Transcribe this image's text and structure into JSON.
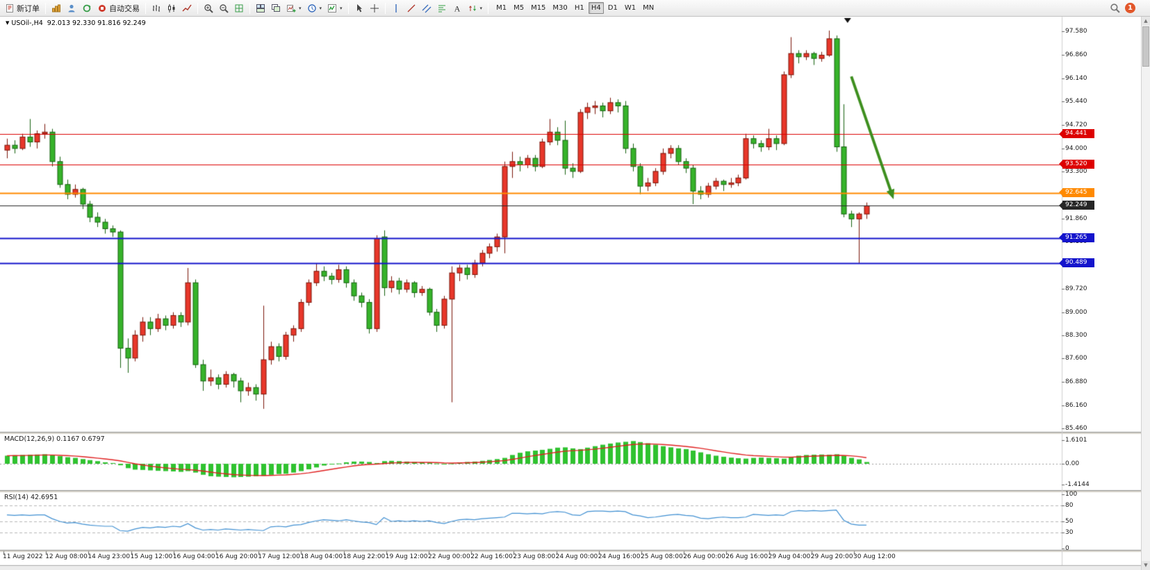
{
  "toolbar": {
    "items": [
      {
        "type": "button",
        "name": "new-order",
        "icon": "new-order-icon",
        "label": "新订单"
      },
      {
        "type": "sep"
      },
      {
        "type": "button",
        "name": "charts",
        "icon": "charts-icon"
      },
      {
        "type": "button",
        "name": "profiles",
        "icon": "profile-icon"
      },
      {
        "type": "button",
        "name": "refresh",
        "icon": "refresh-icon"
      },
      {
        "type": "button",
        "name": "autotrading",
        "icon": "autotrade-icon",
        "label": "自动交易"
      },
      {
        "type": "sep"
      },
      {
        "type": "button",
        "name": "bar-chart-mode",
        "icon": "bars-chart-icon"
      },
      {
        "type": "button",
        "name": "candlestick-mode",
        "icon": "candles-chart-icon"
      },
      {
        "type": "button",
        "name": "line-chart-mode",
        "icon": "line-chart-icon"
      },
      {
        "type": "sep"
      },
      {
        "type": "button",
        "name": "zoom-in",
        "icon": "zoom-in-icon"
      },
      {
        "type": "button",
        "name": "zoom-out",
        "icon": "zoom-out-icon"
      },
      {
        "type": "button",
        "name": "auto-arrange",
        "icon": "grid-icon"
      },
      {
        "type": "sep"
      },
      {
        "type": "button",
        "name": "tile-windows",
        "icon": "tile-windows-icon"
      },
      {
        "type": "button",
        "name": "cascade-windows",
        "icon": "cascade-windows-icon"
      },
      {
        "type": "button",
        "name": "new-chart",
        "icon": "new-chart-icon",
        "caret": true
      },
      {
        "type": "button",
        "name": "periods",
        "icon": "clock-icon",
        "caret": true
      },
      {
        "type": "button",
        "name": "indicators",
        "icon": "indicators-icon",
        "caret": true
      },
      {
        "type": "sep"
      },
      {
        "type": "button",
        "name": "cursor",
        "icon": "cursor-icon"
      },
      {
        "type": "button",
        "name": "crosshair",
        "icon": "crosshair-icon"
      },
      {
        "type": "sep"
      },
      {
        "type": "button",
        "name": "vertical-line",
        "icon": "vline-icon"
      },
      {
        "type": "button",
        "name": "trendline",
        "icon": "trendline-icon"
      },
      {
        "type": "button",
        "name": "equidistant-channel",
        "icon": "channel-icon"
      },
      {
        "type": "button",
        "name": "fibonacci",
        "icon": "fibonacci-icon"
      },
      {
        "type": "button",
        "name": "text-label",
        "icon": "text-icon"
      },
      {
        "type": "button",
        "name": "arrow-objects",
        "icon": "arrows-icon",
        "caret": true
      },
      {
        "type": "sep"
      }
    ],
    "timeframes": {
      "items": [
        "M1",
        "M5",
        "M15",
        "M30",
        "H1",
        "H4",
        "D1",
        "W1",
        "MN"
      ],
      "active": "H4"
    },
    "badge_count": "1"
  },
  "chart": {
    "symbol_period": "USOil-,H4",
    "ohlc_text": "92.013 92.330 91.816 92.249"
  },
  "chart_data": {
    "type": "candlestick",
    "symbol": "USOil-",
    "timeframe": "H4",
    "price_range": [
      85.46,
      97.58
    ],
    "price_axis_labels": [
      "97.580",
      "96.860",
      "96.140",
      "95.440",
      "94.720",
      "94.000",
      "93.300",
      "92.580",
      "91.860",
      "91.160",
      "90.440",
      "89.720",
      "89.000",
      "88.300",
      "87.600",
      "86.880",
      "86.160",
      "85.460"
    ],
    "time_axis_labels": [
      "11 Aug 2022",
      "12 Aug 08:00",
      "14 Aug 23:00",
      "15 Aug 12:00",
      "16 Aug 04:00",
      "16 Aug 20:00",
      "17 Aug 12:00",
      "18 Aug 04:00",
      "18 Aug 22:00",
      "19 Aug 12:00",
      "22 Aug 00:00",
      "22 Aug 16:00",
      "23 Aug 08:00",
      "24 Aug 00:00",
      "24 Aug 16:00",
      "25 Aug 08:00",
      "26 Aug 00:00",
      "26 Aug 16:00",
      "29 Aug 04:00",
      "29 Aug 20:00",
      "30 Aug 12:00"
    ],
    "levels": [
      {
        "label": "94.441",
        "price": 94.441,
        "color": "#dd0000",
        "width": 1
      },
      {
        "label": "93.520",
        "price": 93.52,
        "color": "#dd0000",
        "width": 1
      },
      {
        "label": "92.645",
        "price": 92.645,
        "color": "#ff8a00",
        "width": 2
      },
      {
        "label": "92.249",
        "price": 92.249,
        "color": "#262626",
        "width": 1
      },
      {
        "label": "91.265",
        "price": 91.265,
        "color": "#1414cc",
        "width": 2
      },
      {
        "label": "90.489",
        "price": 90.489,
        "color": "#1414cc",
        "width": 2
      }
    ],
    "candles": [
      [
        93.95,
        94.3,
        93.7,
        94.1
      ],
      [
        94.1,
        94.25,
        93.85,
        94.0
      ],
      [
        94.0,
        94.45,
        93.95,
        94.35
      ],
      [
        94.35,
        94.9,
        94.05,
        94.2
      ],
      [
        94.2,
        94.55,
        94.0,
        94.45
      ],
      [
        94.45,
        94.75,
        94.3,
        94.5
      ],
      [
        94.5,
        94.6,
        93.45,
        93.6
      ],
      [
        93.6,
        93.75,
        92.8,
        92.9
      ],
      [
        92.9,
        93.05,
        92.45,
        92.6
      ],
      [
        92.6,
        92.9,
        92.5,
        92.75
      ],
      [
        92.75,
        92.8,
        92.15,
        92.3
      ],
      [
        92.3,
        92.4,
        91.75,
        91.9
      ],
      [
        91.9,
        92.05,
        91.6,
        91.75
      ],
      [
        91.75,
        91.85,
        91.4,
        91.55
      ],
      [
        91.55,
        91.65,
        91.3,
        91.45
      ],
      [
        91.45,
        91.5,
        87.3,
        87.9
      ],
      [
        87.9,
        88.2,
        87.15,
        87.6
      ],
      [
        87.6,
        88.45,
        87.5,
        88.3
      ],
      [
        88.3,
        88.85,
        88.1,
        88.7
      ],
      [
        88.7,
        88.85,
        88.3,
        88.5
      ],
      [
        88.5,
        88.95,
        88.4,
        88.8
      ],
      [
        88.8,
        88.9,
        88.45,
        88.6
      ],
      [
        88.6,
        89.0,
        88.5,
        88.9
      ],
      [
        88.9,
        89.0,
        88.55,
        88.7
      ],
      [
        88.7,
        90.35,
        88.6,
        89.9
      ],
      [
        89.9,
        90.0,
        87.3,
        87.4
      ],
      [
        87.4,
        87.55,
        86.6,
        86.9
      ],
      [
        86.9,
        87.25,
        86.75,
        87.0
      ],
      [
        87.0,
        87.1,
        86.65,
        86.8
      ],
      [
        86.8,
        87.2,
        86.7,
        87.1
      ],
      [
        87.1,
        87.15,
        86.7,
        86.9
      ],
      [
        86.9,
        87.0,
        86.25,
        86.6
      ],
      [
        86.6,
        86.85,
        86.45,
        86.7
      ],
      [
        86.7,
        86.8,
        86.3,
        86.5
      ],
      [
        86.5,
        89.2,
        86.05,
        87.55
      ],
      [
        87.55,
        88.1,
        87.4,
        87.95
      ],
      [
        87.95,
        88.05,
        87.5,
        87.65
      ],
      [
        87.65,
        88.4,
        87.55,
        88.3
      ],
      [
        88.3,
        88.6,
        88.1,
        88.5
      ],
      [
        88.5,
        89.4,
        88.4,
        89.3
      ],
      [
        89.3,
        90.0,
        89.2,
        89.9
      ],
      [
        89.9,
        90.5,
        89.8,
        90.25
      ],
      [
        90.25,
        90.4,
        89.95,
        90.1
      ],
      [
        90.1,
        90.2,
        89.85,
        90.0
      ],
      [
        90.0,
        90.45,
        89.9,
        90.3
      ],
      [
        90.3,
        90.4,
        89.75,
        89.9
      ],
      [
        89.9,
        90.0,
        89.35,
        89.5
      ],
      [
        89.5,
        89.6,
        89.15,
        89.3
      ],
      [
        89.3,
        89.4,
        88.35,
        88.5
      ],
      [
        88.5,
        91.35,
        88.4,
        91.25
      ],
      [
        91.3,
        91.5,
        89.5,
        89.75
      ],
      [
        89.75,
        90.1,
        89.6,
        89.95
      ],
      [
        89.95,
        90.05,
        89.55,
        89.7
      ],
      [
        89.7,
        90.0,
        89.6,
        89.9
      ],
      [
        89.9,
        89.95,
        89.45,
        89.6
      ],
      [
        89.6,
        89.8,
        89.5,
        89.7
      ],
      [
        89.7,
        89.75,
        88.9,
        89.0
      ],
      [
        89.0,
        89.1,
        88.4,
        88.6
      ],
      [
        88.6,
        89.5,
        88.5,
        89.4
      ],
      [
        89.4,
        90.4,
        86.25,
        90.2
      ],
      [
        90.2,
        90.45,
        89.95,
        90.35
      ],
      [
        90.35,
        90.45,
        90.0,
        90.15
      ],
      [
        90.15,
        90.6,
        90.05,
        90.5
      ],
      [
        90.5,
        90.9,
        90.4,
        90.8
      ],
      [
        90.8,
        91.1,
        90.65,
        91.0
      ],
      [
        91.0,
        91.4,
        90.85,
        91.3
      ],
      [
        91.3,
        93.6,
        90.8,
        93.45
      ],
      [
        93.45,
        93.9,
        93.1,
        93.6
      ],
      [
        93.6,
        93.75,
        93.3,
        93.5
      ],
      [
        93.5,
        93.8,
        93.4,
        93.7
      ],
      [
        93.7,
        93.8,
        93.3,
        93.45
      ],
      [
        93.45,
        94.3,
        93.4,
        94.2
      ],
      [
        94.2,
        94.9,
        94.1,
        94.5
      ],
      [
        94.5,
        94.65,
        94.1,
        94.25
      ],
      [
        94.25,
        94.85,
        93.2,
        93.4
      ],
      [
        93.4,
        93.55,
        93.1,
        93.3
      ],
      [
        93.3,
        95.2,
        93.25,
        95.1
      ],
      [
        95.1,
        95.4,
        94.9,
        95.25
      ],
      [
        95.25,
        95.45,
        95.05,
        95.3
      ],
      [
        95.3,
        95.4,
        94.95,
        95.15
      ],
      [
        95.15,
        95.55,
        95.05,
        95.4
      ],
      [
        95.4,
        95.5,
        95.1,
        95.3
      ],
      [
        95.3,
        95.45,
        93.85,
        94.0
      ],
      [
        94.0,
        94.15,
        93.3,
        93.45
      ],
      [
        93.45,
        93.55,
        92.6,
        92.85
      ],
      [
        92.85,
        93.1,
        92.7,
        92.95
      ],
      [
        92.95,
        93.4,
        92.85,
        93.3
      ],
      [
        93.3,
        94.0,
        93.2,
        93.85
      ],
      [
        93.85,
        94.1,
        93.7,
        94.0
      ],
      [
        94.0,
        94.1,
        93.5,
        93.6
      ],
      [
        93.6,
        93.7,
        93.25,
        93.4
      ],
      [
        93.4,
        93.5,
        92.3,
        92.7
      ],
      [
        92.7,
        92.85,
        92.45,
        92.6
      ],
      [
        92.6,
        92.95,
        92.5,
        92.85
      ],
      [
        92.85,
        93.1,
        92.75,
        93.0
      ],
      [
        93.0,
        93.05,
        92.7,
        92.9
      ],
      [
        92.9,
        93.1,
        92.8,
        92.95
      ],
      [
        92.95,
        93.2,
        92.85,
        93.1
      ],
      [
        93.1,
        94.45,
        93.05,
        94.3
      ],
      [
        94.3,
        94.4,
        94.0,
        94.15
      ],
      [
        94.15,
        94.25,
        93.9,
        94.05
      ],
      [
        94.05,
        94.6,
        93.95,
        94.3
      ],
      [
        94.3,
        94.4,
        93.95,
        94.15
      ],
      [
        94.15,
        96.35,
        94.1,
        96.25
      ],
      [
        96.25,
        97.4,
        96.15,
        96.9
      ],
      [
        96.9,
        97.0,
        96.6,
        96.8
      ],
      [
        96.8,
        97.0,
        96.7,
        96.9
      ],
      [
        96.9,
        96.95,
        96.55,
        96.75
      ],
      [
        96.75,
        96.95,
        96.65,
        96.85
      ],
      [
        96.85,
        97.6,
        96.8,
        97.35
      ],
      [
        97.35,
        97.45,
        93.9,
        94.05
      ],
      [
        94.05,
        95.35,
        91.9,
        92.0
      ],
      [
        92.0,
        92.1,
        91.6,
        91.85
      ],
      [
        91.85,
        92.05,
        90.5,
        92.0
      ],
      [
        92.0,
        92.35,
        91.85,
        92.25
      ]
    ],
    "macd": {
      "label": "MACD(12,26,9) 0.1167 0.6797",
      "axis": [
        {
          "v": 1.6101,
          "label": "1.6101"
        },
        {
          "v": 0,
          "label": "0.00"
        },
        {
          "v": -1.4144,
          "label": "-1.4144"
        }
      ],
      "range": [
        -1.4144,
        1.6101
      ],
      "signal_period": 9,
      "values": [
        0.55,
        0.58,
        0.6,
        0.62,
        0.63,
        0.65,
        0.6,
        0.52,
        0.45,
        0.4,
        0.32,
        0.25,
        0.18,
        0.1,
        0.05,
        -0.1,
        -0.3,
        -0.4,
        -0.42,
        -0.45,
        -0.48,
        -0.5,
        -0.52,
        -0.55,
        -0.5,
        -0.6,
        -0.75,
        -0.85,
        -0.88,
        -0.9,
        -0.92,
        -0.9,
        -0.88,
        -0.85,
        -0.82,
        -0.75,
        -0.7,
        -0.68,
        -0.6,
        -0.5,
        -0.38,
        -0.25,
        -0.12,
        -0.05,
        0.02,
        0.1,
        0.15,
        0.15,
        0.12,
        0.05,
        0.18,
        0.2,
        0.18,
        0.15,
        0.12,
        0.1,
        0.08,
        0.02,
        -0.03,
        0.02,
        0.08,
        0.12,
        0.15,
        0.2,
        0.26,
        0.32,
        0.4,
        0.6,
        0.75,
        0.85,
        0.9,
        0.95,
        1.02,
        1.1,
        1.12,
        1.05,
        1.0,
        1.1,
        1.2,
        1.3,
        1.38,
        1.45,
        1.5,
        1.55,
        1.48,
        1.4,
        1.3,
        1.2,
        1.12,
        1.05,
        1.0,
        0.9,
        0.78,
        0.65,
        0.55,
        0.48,
        0.42,
        0.38,
        0.35,
        0.4,
        0.42,
        0.4,
        0.38,
        0.35,
        0.45,
        0.55,
        0.6,
        0.62,
        0.63,
        0.62,
        0.65,
        0.55,
        0.4,
        0.3,
        0.12
      ]
    },
    "rsi": {
      "label": "RSI(14) 42.6951",
      "axis": [
        {
          "v": 100,
          "label": "100"
        },
        {
          "v": 80,
          "label": "80"
        },
        {
          "v": 50,
          "label": "50"
        },
        {
          "v": 30,
          "label": "30"
        },
        {
          "v": 0,
          "label": "0"
        }
      ],
      "dashed_levels": [
        80,
        50,
        30
      ],
      "range": [
        0,
        100
      ],
      "values": [
        62,
        61,
        62,
        61,
        62,
        62,
        55,
        50,
        47,
        48,
        45,
        43,
        42,
        41,
        41,
        33,
        32,
        36,
        39,
        38,
        40,
        39,
        41,
        40,
        46,
        38,
        34,
        35,
        34,
        36,
        35,
        34,
        35,
        34,
        33,
        40,
        41,
        40,
        43,
        44,
        48,
        51,
        53,
        52,
        51,
        53,
        51,
        49,
        48,
        44,
        57,
        50,
        51,
        50,
        51,
        50,
        51,
        48,
        46,
        50,
        53,
        54,
        53,
        55,
        56,
        57,
        58,
        65,
        65,
        64,
        65,
        64,
        67,
        68,
        67,
        62,
        61,
        68,
        69,
        69,
        68,
        69,
        68,
        62,
        60,
        57,
        58,
        60,
        62,
        63,
        61,
        60,
        56,
        55,
        57,
        58,
        57,
        57,
        58,
        63,
        62,
        61,
        62,
        61,
        68,
        70,
        69,
        70,
        69,
        70,
        71,
        52,
        45,
        43,
        43
      ]
    },
    "annotations": {
      "arrow": {
        "from": {
          "index": 112,
          "price": 96.2
        },
        "to": {
          "index": 117.6,
          "price": 92.45
        },
        "color": "#3e8f1f",
        "width": 4
      },
      "top_marker": {
        "index": 111.5,
        "color": "#111111"
      }
    },
    "colors": {
      "up": "#e8372a",
      "up_border": "#7a1408",
      "down": "#36b32a",
      "down_border": "#14610e",
      "macd_histogram": "#2fc22f",
      "macd_signal": "#e02020",
      "rsi_line": "#3f8fd2"
    }
  }
}
